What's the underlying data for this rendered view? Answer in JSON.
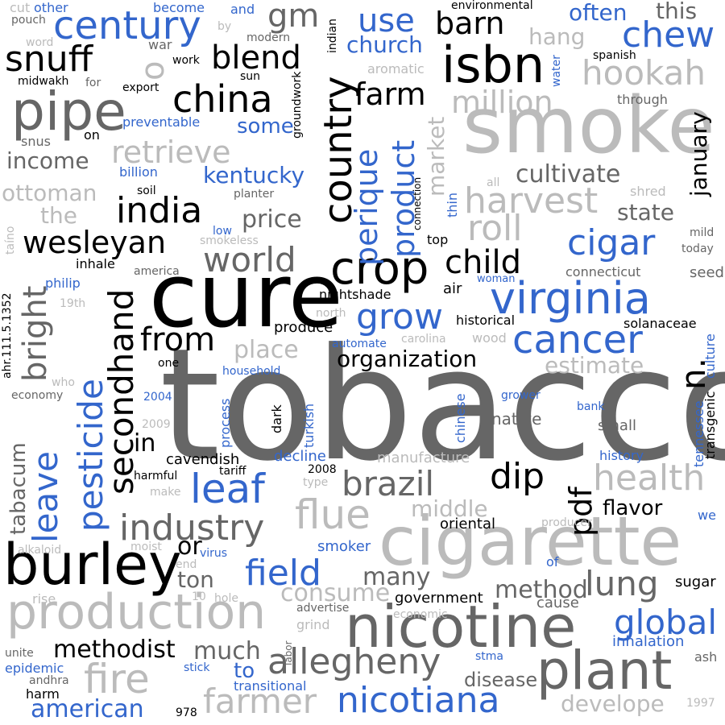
{
  "palette": {
    "black": "#000000",
    "dark_gray": "#666666",
    "light_gray": "#bbbbbb",
    "blue": "#3366cc",
    "background": "#ffffff"
  },
  "words": {
    "tobacco": "tobacco",
    "cure": "cure",
    "smoke": "smoke",
    "cigarette": "cigarette",
    "nicotine": "nicotine",
    "burley": "burley",
    "production": "production",
    "plant": "plant",
    "nicotiana": "nicotiana",
    "isbn": "isbn",
    "pipe": "pipe",
    "snuff": "snuff",
    "century": "century",
    "virginia": "virginia",
    "crop": "crop",
    "country": "country",
    "china": "china",
    "india": "india",
    "wesleyan": "wesleyan",
    "secondhand": "secondhand",
    "pesticide": "pesticide",
    "leave": "leave",
    "leaf": "leaf",
    "cancer": "cancer",
    "allegheny": "allegheny",
    "industry": "industry",
    "fire": "fire",
    "field": "field",
    "flue": "flue",
    "brazil": "brazil",
    "dip": "dip",
    "pdf": "pdf",
    "health": "health",
    "global": "global",
    "lung": "lung",
    "farmer": "farmer",
    "roll": "roll",
    "harvest": "harvest",
    "cigar": "cigar",
    "chew": "chew",
    "hookah": "hookah",
    "million": "million",
    "retrieve": "retrieve",
    "world": "world",
    "child": "child",
    "grow": "grow",
    "from": "from",
    "blend": "blend",
    "gm": "gm",
    "use": "use",
    "barn": "barn",
    "farm": "farm",
    "product": "product",
    "perique": "perique",
    "bright": "bright",
    "organization": "organization",
    "cultivate": "cultivate",
    "state": "state",
    "price": "price",
    "place": "place",
    "n": "n.",
    "methodist": "methodist",
    "method": "method",
    "consume": "consume",
    "american": "american",
    "many": "many",
    "much": "much",
    "ton": "ton",
    "or": "or",
    "in": "in",
    "to": "to",
    "income": "income",
    "ottoman": "ottoman",
    "the": "the",
    "kentucky": "kentucky",
    "church": "church",
    "often": "often",
    "this": "this",
    "hang": "hang",
    "january": "january",
    "market": "market",
    "some": "some",
    "o": "o",
    "estimate": "estimate",
    "middle": "middle",
    "flavor": "flavor",
    "develope": "develope",
    "disease": "disease",
    "government": "government",
    "tabacum": "tabacum",
    "cavendish": "cavendish",
    "native": "native",
    "small": "small",
    "decline": "decline",
    "smoker": "smoker",
    "inhalation": "inhalation",
    "oriental": "oriental",
    "sugar": "sugar",
    "cause": "cause",
    "manufacture": "manufacture",
    "history": "history",
    "tennessee": "tennessee",
    "transgenic": "transgenic",
    "culture": "culture",
    "connecticut": "connecticut",
    "seed": "seed",
    "produce": "produce",
    "historical": "historical",
    "solanaceae": "solanaceae",
    "nightshade": "nightshade",
    "air": "air",
    "woman": "woman",
    "north": "north",
    "carolina": "carolina",
    "wood": "wood",
    "automate": "automate",
    "household": "household",
    "one": "one",
    "who": "who",
    "economy": "economy",
    "d2004": "2004",
    "d2009": "2009",
    "process": "process",
    "dark": "dark",
    "turkish": "turkish",
    "chinese": "chinese",
    "grower": "grower",
    "bank": "bank",
    "tariff": "tariff",
    "d2008": "2008",
    "type": "type",
    "harmful": "harmful",
    "make": "make",
    "alkaloid": "alkaloid",
    "moist": "moist",
    "end": "end",
    "virus": "virus",
    "low": "low",
    "smokeless": "smokeless",
    "inhale": "inhale",
    "america": "america",
    "philip": "philip",
    "d19th": "19th",
    "ahr": "ahr.111.5.1352",
    "taino": "taíno",
    "billion": "billion",
    "soil": "soil",
    "planter": "planter",
    "preventable": "preventable",
    "snus": "snus",
    "on": "on",
    "export": "export",
    "for": "for",
    "midwakh": "midwakh",
    "word": "word",
    "pouch": "pouch",
    "cut": "cut",
    "other": "other",
    "become": "become",
    "and": "and",
    "by": "by",
    "war": "war",
    "work": "work",
    "sun": "sun",
    "modern": "modern",
    "groundwork": "groundwork",
    "indian": "indian",
    "environmental": "environmental",
    "aromatic": "aromatic",
    "water": "water",
    "spanish": "spanish",
    "through": "through",
    "all": "all",
    "connection": "connection",
    "thin": "thin",
    "top": "top",
    "shred": "shred",
    "mild": "mild",
    "today": "today",
    "rise": "rise",
    "unite": "unite",
    "epidemic": "epidemic",
    "andhra": "andhra",
    "harm": "harm",
    "d978": "978",
    "stick": "stick",
    "transitional": "transitional",
    "stma": "stma",
    "ash": "ash",
    "d1997": "1997",
    "we": "we",
    "of": "of",
    "producer": "producer",
    "advertise": "advertise",
    "economic": "economic",
    "grind": "grind",
    "labor": "labor",
    "d10": "10",
    "hole": "hole"
  }
}
